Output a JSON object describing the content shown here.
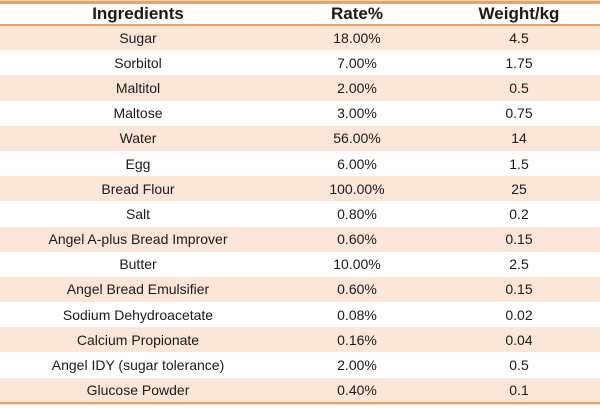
{
  "chart_data": {
    "type": "table",
    "columns": [
      "Ingredients",
      "Rate%",
      "Weight/kg"
    ],
    "rows": [
      [
        "Sugar",
        "18.00%",
        "4.5"
      ],
      [
        "Sorbitol",
        "7.00%",
        "1.75"
      ],
      [
        "Maltitol",
        "2.00%",
        "0.5"
      ],
      [
        "Maltose",
        "3.00%",
        "0.75"
      ],
      [
        "Water",
        "56.00%",
        "14"
      ],
      [
        "Egg",
        "6.00%",
        "1.5"
      ],
      [
        "Bread Flour",
        "100.00%",
        "25"
      ],
      [
        "Salt",
        "0.80%",
        "0.2"
      ],
      [
        "Angel A-plus Bread Improver",
        "0.60%",
        "0.15"
      ],
      [
        "Butter",
        "10.00%",
        "2.5"
      ],
      [
        "Angel Bread Emulsifier",
        "0.60%",
        "0.15"
      ],
      [
        "Sodium Dehydroacetate",
        "0.08%",
        "0.02"
      ],
      [
        "Calcium Propionate",
        "0.16%",
        "0.04"
      ],
      [
        "Angel IDY (sugar tolerance)",
        "2.00%",
        "0.5"
      ],
      [
        "Glucose Powder",
        "0.40%",
        "0.1"
      ]
    ],
    "layout": {
      "striped": "odd data rows shaded peach, even rows white",
      "text_align": "center",
      "grid": "horizontal accent borders only (top, under header, bottom)",
      "legend": "none"
    }
  },
  "colors": {
    "accent_border": "#EFA163",
    "accent_border_light": "#FBDFC9",
    "row_shade": "#FCE6D8",
    "row_plain": "#FFFFFF",
    "header_bg": "#FFFFFF",
    "text": "#1A1A1A"
  }
}
